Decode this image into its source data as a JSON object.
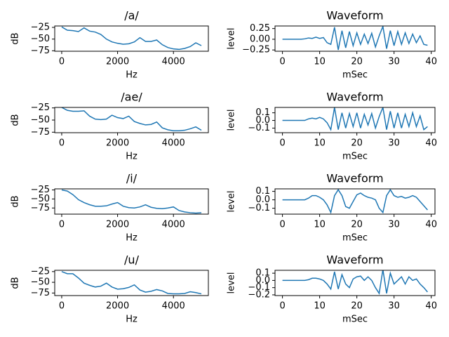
{
  "chart_data": [
    {
      "type": "line",
      "title": "/a/",
      "xlabel": "Hz",
      "ylabel": "dB",
      "x": [
        0,
        200,
        400,
        600,
        800,
        1000,
        1200,
        1400,
        1600,
        1800,
        2000,
        2200,
        2400,
        2600,
        2800,
        3000,
        3200,
        3400,
        3600,
        3800,
        4000,
        4200,
        4400,
        4600,
        4800,
        5000
      ],
      "series": [
        {
          "color": "#1f77b4",
          "values": [
            -24,
            -31,
            -32,
            -34,
            -26,
            -33,
            -35,
            -40,
            -50,
            -56,
            -59,
            -61,
            -60,
            -56,
            -47,
            -55,
            -55,
            -52,
            -62,
            -68,
            -71,
            -72,
            -70,
            -66,
            -58,
            -64
          ]
        }
      ],
      "xlim": [
        -250,
        5250
      ],
      "xticks": [
        0,
        2000,
        4000
      ],
      "ylim": [
        -76,
        -22
      ],
      "yticks": [
        {
          "value": -25,
          "label": "−25"
        },
        {
          "value": -50,
          "label": "−50"
        },
        {
          "value": -75,
          "label": "−75"
        }
      ]
    },
    {
      "type": "line",
      "title": "Waveform",
      "xlabel": "mSec",
      "ylabel": "level",
      "x": [
        0,
        1,
        2,
        3,
        4,
        5,
        6,
        7,
        8,
        9,
        10,
        11,
        12,
        13,
        14,
        15,
        16,
        17,
        18,
        19,
        20,
        21,
        22,
        23,
        24,
        25,
        26,
        27,
        28,
        29,
        30,
        31,
        32,
        33,
        34,
        35,
        36,
        37,
        38,
        39
      ],
      "series": [
        {
          "color": "#1f77b4",
          "values": [
            0,
            0,
            0,
            0,
            0,
            0,
            0.01,
            0.03,
            0.02,
            0.05,
            0.02,
            0.04,
            -0.08,
            -0.12,
            0.28,
            -0.25,
            0.2,
            -0.2,
            0.18,
            -0.15,
            0.15,
            -0.12,
            0.12,
            -0.1,
            0.14,
            -0.18,
            0.08,
            0.3,
            -0.22,
            0.2,
            -0.15,
            0.18,
            -0.12,
            0.15,
            -0.1,
            0.12,
            -0.08,
            0.08,
            -0.12,
            -0.14
          ]
        }
      ],
      "xlim": [
        -2,
        41
      ],
      "xticks": [
        0,
        10,
        20,
        30,
        40
      ],
      "ylim": [
        -0.28,
        0.31
      ],
      "yticks": [
        {
          "value": 0.25,
          "label": "0.25"
        },
        {
          "value": 0,
          "label": "0.00"
        },
        {
          "value": -0.25,
          "label": "−0.25"
        }
      ]
    },
    {
      "type": "line",
      "title": "/ae/",
      "xlabel": "Hz",
      "ylabel": "dB",
      "x": [
        0,
        200,
        400,
        600,
        800,
        1000,
        1200,
        1400,
        1600,
        1800,
        2000,
        2200,
        2400,
        2600,
        2800,
        3000,
        3200,
        3400,
        3600,
        3800,
        4000,
        4200,
        4400,
        4600,
        4800,
        5000
      ],
      "series": [
        {
          "color": "#1f77b4",
          "values": [
            -24,
            -30,
            -32,
            -32,
            -31,
            -42,
            -48,
            -49,
            -48,
            -40,
            -45,
            -47,
            -42,
            -53,
            -57,
            -60,
            -59,
            -54,
            -66,
            -70,
            -72,
            -72,
            -71,
            -68,
            -64,
            -71
          ]
        }
      ],
      "xlim": [
        -250,
        5250
      ],
      "xticks": [
        0,
        2000,
        4000
      ],
      "ylim": [
        -76,
        -24
      ],
      "yticks": [
        {
          "value": -25,
          "label": "−25"
        },
        {
          "value": -50,
          "label": "−50"
        },
        {
          "value": -75,
          "label": "−75"
        }
      ]
    },
    {
      "type": "line",
      "title": "Waveform",
      "xlabel": "mSec",
      "ylabel": "level",
      "x": [
        0,
        1,
        2,
        3,
        4,
        5,
        6,
        7,
        8,
        9,
        10,
        11,
        12,
        13,
        14,
        15,
        16,
        17,
        18,
        19,
        20,
        21,
        22,
        23,
        24,
        25,
        26,
        27,
        28,
        29,
        30,
        31,
        32,
        33,
        34,
        35,
        36,
        37,
        38,
        39
      ],
      "series": [
        {
          "color": "#1f77b4",
          "values": [
            0,
            0,
            0,
            0,
            0,
            0,
            0,
            0.02,
            0.03,
            0.02,
            0.04,
            0.02,
            -0.03,
            -0.12,
            0.17,
            -0.12,
            0.1,
            -0.1,
            0.09,
            -0.08,
            0.1,
            -0.1,
            0.08,
            -0.06,
            0.09,
            -0.1,
            0.05,
            0.17,
            -0.12,
            0.12,
            -0.1,
            0.1,
            -0.1,
            0.08,
            -0.08,
            0.1,
            -0.08,
            0.06,
            -0.12,
            -0.08
          ]
        }
      ],
      "xlim": [
        -2,
        41
      ],
      "xticks": [
        0,
        10,
        20,
        30,
        40
      ],
      "ylim": [
        -0.16,
        0.17
      ],
      "yticks": [
        0.1,
        {
          "value": 0,
          "label": "0.0"
        },
        {
          "value": -0.1,
          "label": "−0.1"
        }
      ]
    },
    {
      "type": "line",
      "title": "/i/",
      "xlabel": "Hz",
      "ylabel": "dB",
      "x": [
        0,
        200,
        400,
        600,
        800,
        1000,
        1200,
        1400,
        1600,
        1800,
        2000,
        2200,
        2400,
        2600,
        2800,
        3000,
        3200,
        3400,
        3600,
        3800,
        4000,
        4200,
        4400,
        4600,
        4800,
        5000
      ],
      "series": [
        {
          "color": "#1f77b4",
          "values": [
            -25,
            -28,
            -38,
            -52,
            -60,
            -66,
            -70,
            -70,
            -69,
            -64,
            -60,
            -70,
            -74,
            -75,
            -72,
            -66,
            -73,
            -76,
            -77,
            -75,
            -72,
            -82,
            -86,
            -88,
            -89,
            -88
          ]
        }
      ],
      "xlim": [
        -250,
        5250
      ],
      "xticks": [
        0,
        2000,
        4000
      ],
      "ylim": [
        -92,
        -22
      ],
      "yticks": [
        {
          "value": -25,
          "label": "−25"
        },
        {
          "value": -50,
          "label": "−50"
        },
        {
          "value": -75,
          "label": "−75"
        }
      ]
    },
    {
      "type": "line",
      "title": "Waveform",
      "xlabel": "mSec",
      "ylabel": "level",
      "x": [
        0,
        1,
        2,
        3,
        4,
        5,
        6,
        7,
        8,
        9,
        10,
        11,
        12,
        13,
        14,
        15,
        16,
        17,
        18,
        19,
        20,
        21,
        22,
        23,
        24,
        25,
        26,
        27,
        28,
        29,
        30,
        31,
        32,
        33,
        34,
        35,
        36,
        37,
        38,
        39
      ],
      "series": [
        {
          "color": "#1f77b4",
          "values": [
            0,
            0,
            0,
            0,
            0,
            0,
            0,
            0.02,
            0.05,
            0.05,
            0.03,
            0,
            -0.06,
            -0.15,
            0.05,
            0.12,
            0.05,
            -0.08,
            -0.1,
            -0.02,
            0.06,
            0.08,
            0.05,
            0.03,
            0.02,
            0,
            -0.1,
            -0.15,
            0.05,
            0.12,
            0.05,
            0.03,
            0.04,
            0.02,
            0.03,
            0.05,
            0.03,
            -0.02,
            -0.07,
            -0.12
          ]
        }
      ],
      "xlim": [
        -2,
        41
      ],
      "xticks": [
        0,
        10,
        20,
        30,
        40
      ],
      "ylim": [
        -0.17,
        0.13
      ],
      "yticks": [
        0.1,
        {
          "value": 0,
          "label": "0.0"
        },
        {
          "value": -0.1,
          "label": "−0.1"
        }
      ]
    },
    {
      "type": "line",
      "title": "/u/",
      "xlabel": "Hz",
      "ylabel": "dB",
      "x": [
        0,
        200,
        400,
        600,
        800,
        1000,
        1200,
        1400,
        1600,
        1800,
        2000,
        2200,
        2400,
        2600,
        2800,
        3000,
        3200,
        3400,
        3600,
        3800,
        4000,
        4200,
        4400,
        4600,
        4800,
        5000
      ],
      "series": [
        {
          "color": "#1f77b4",
          "values": [
            -25,
            -30,
            -30,
            -40,
            -52,
            -57,
            -61,
            -59,
            -52,
            -61,
            -66,
            -65,
            -62,
            -56,
            -68,
            -73,
            -71,
            -67,
            -70,
            -76,
            -77,
            -77,
            -76,
            -72,
            -74,
            -77
          ]
        }
      ],
      "xlim": [
        -250,
        5250
      ],
      "xticks": [
        0,
        2000,
        4000
      ],
      "ylim": [
        -81,
        -22
      ],
      "yticks": [
        {
          "value": -25,
          "label": "−25"
        },
        {
          "value": -50,
          "label": "−50"
        },
        {
          "value": -75,
          "label": "−75"
        }
      ]
    },
    {
      "type": "line",
      "title": "Waveform",
      "xlabel": "mSec",
      "ylabel": "level",
      "x": [
        0,
        1,
        2,
        3,
        4,
        5,
        6,
        7,
        8,
        9,
        10,
        11,
        12,
        13,
        14,
        15,
        16,
        17,
        18,
        19,
        20,
        21,
        22,
        23,
        24,
        25,
        26,
        27,
        28,
        29,
        30,
        31,
        32,
        33,
        34,
        35,
        36,
        37,
        38,
        39
      ],
      "series": [
        {
          "color": "#1f77b4",
          "values": [
            0,
            0,
            0,
            0,
            0,
            0,
            0,
            0.01,
            0.03,
            0.03,
            0.02,
            0,
            -0.05,
            -0.12,
            0.12,
            -0.12,
            0.08,
            -0.05,
            -0.1,
            0.02,
            0.05,
            0.06,
            0,
            0.05,
            0,
            -0.1,
            -0.18,
            0.15,
            -0.18,
            0.1,
            -0.05,
            0,
            0.05,
            -0.05,
            0.05,
            0,
            0.02,
            -0.05,
            -0.1,
            -0.16
          ]
        }
      ],
      "xlim": [
        -2,
        41
      ],
      "xticks": [
        0,
        10,
        20,
        30,
        40
      ],
      "ylim": [
        -0.21,
        0.14
      ],
      "yticks": [
        0.1,
        {
          "value": 0,
          "label": "0.0"
        },
        {
          "value": -0.1,
          "label": "−0.1"
        },
        {
          "value": -0.2,
          "label": "−0.2"
        }
      ]
    }
  ]
}
